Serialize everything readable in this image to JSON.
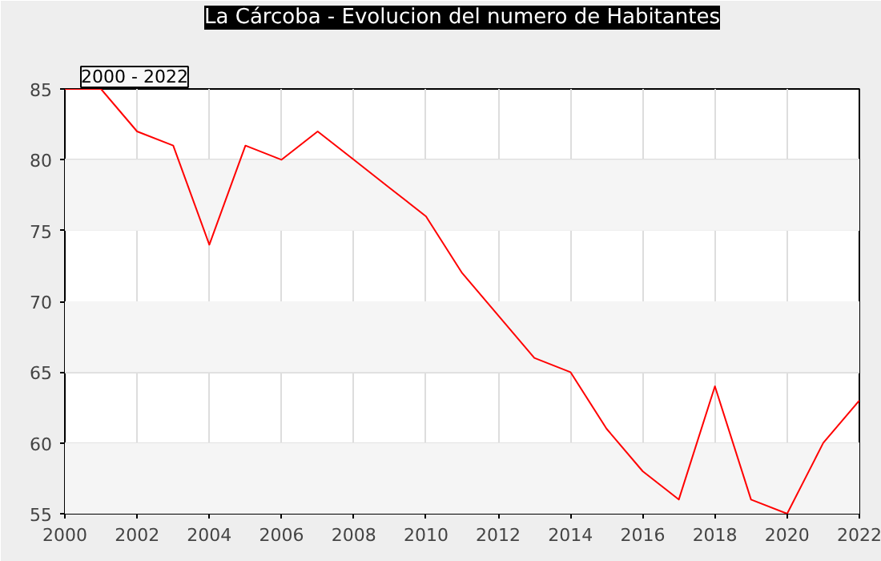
{
  "chart_data": {
    "type": "line",
    "title": "La Cárcoba - Evolucion del numero de Habitantes",
    "annotations": [
      "2000 - 2022"
    ],
    "x": [
      2000,
      2001,
      2002,
      2003,
      2004,
      2005,
      2006,
      2007,
      2008,
      2009,
      2010,
      2011,
      2012,
      2013,
      2014,
      2015,
      2016,
      2017,
      2018,
      2019,
      2020,
      2021,
      2022
    ],
    "series": [
      {
        "color": "#ff0000",
        "values": [
          85,
          85,
          82,
          81,
          74,
          81,
          80,
          82,
          80,
          78,
          76,
          72,
          69,
          66,
          65,
          61,
          58,
          56,
          64,
          56,
          55,
          60,
          63
        ]
      }
    ],
    "xlim": [
      2000,
      2022
    ],
    "xticks": [
      2000,
      2002,
      2004,
      2006,
      2008,
      2010,
      2012,
      2014,
      2016,
      2018,
      2020,
      2022
    ],
    "ylim": [
      55,
      85
    ],
    "yticks": [
      55,
      60,
      65,
      70,
      75,
      80,
      85
    ],
    "bands": [
      {
        "axis": "y",
        "from": 55,
        "to": 60,
        "color": "#f5f5f5"
      },
      {
        "axis": "y",
        "from": 65,
        "to": 70,
        "color": "#f5f5f5"
      },
      {
        "axis": "y",
        "from": 75,
        "to": 80,
        "color": "#f5f5f5"
      }
    ],
    "grid": true,
    "marker": "none",
    "line_style": "solid"
  }
}
